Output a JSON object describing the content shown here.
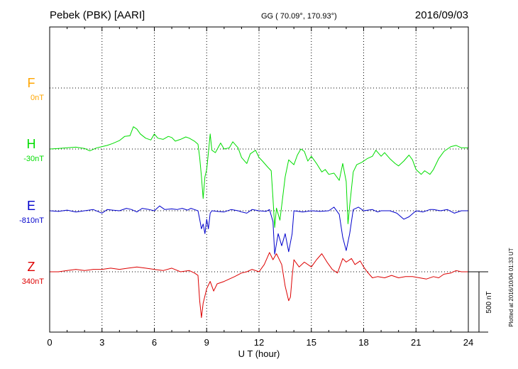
{
  "header": {
    "station": "Pebek (PBK)  [AARI]",
    "coords": "GG ( 70.09°, 170.93°)",
    "date": "2016/09/03"
  },
  "footer": {
    "plotted": "Plotted at 2016/10/04 01:33 UT",
    "scale_label": "500 nT"
  },
  "colors": {
    "F": "#ffa500",
    "H": "#00dd00",
    "E": "#0000cc",
    "Z": "#dd0000"
  },
  "chart_data": {
    "type": "line",
    "xlabel": "U T (hour)",
    "xlim": [
      0,
      24
    ],
    "xticks": [
      "0",
      "3",
      "6",
      "9",
      "12",
      "15",
      "18",
      "21",
      "24"
    ],
    "series": [
      {
        "name": "F",
        "baseline": "0nT",
        "values": []
      },
      {
        "name": "H",
        "baseline": "-30nT",
        "values": [
          [
            0,
            -30
          ],
          [
            0.5,
            -25
          ],
          [
            1,
            -20
          ],
          [
            1.5,
            -15
          ],
          [
            2,
            -25
          ],
          [
            2.3,
            -45
          ],
          [
            2.7,
            -20
          ],
          [
            3,
            -10
          ],
          [
            3.3,
            0
          ],
          [
            3.6,
            15
          ],
          [
            4,
            40
          ],
          [
            4.3,
            75
          ],
          [
            4.6,
            80
          ],
          [
            4.8,
            155
          ],
          [
            5,
            135
          ],
          [
            5.2,
            95
          ],
          [
            5.5,
            60
          ],
          [
            5.8,
            45
          ],
          [
            6,
            95
          ],
          [
            6.2,
            60
          ],
          [
            6.5,
            50
          ],
          [
            6.8,
            75
          ],
          [
            7,
            65
          ],
          [
            7.2,
            35
          ],
          [
            7.5,
            50
          ],
          [
            7.8,
            70
          ],
          [
            8,
            60
          ],
          [
            8.3,
            35
          ],
          [
            8.5,
            10
          ],
          [
            8.6,
            -100
          ],
          [
            8.7,
            -260
          ],
          [
            8.8,
            -440
          ],
          [
            8.9,
            -260
          ],
          [
            9,
            -200
          ],
          [
            9.1,
            -60
          ],
          [
            9.2,
            95
          ],
          [
            9.3,
            -40
          ],
          [
            9.5,
            -60
          ],
          [
            9.8,
            20
          ],
          [
            10,
            -30
          ],
          [
            10.3,
            -20
          ],
          [
            10.5,
            30
          ],
          [
            10.8,
            -20
          ],
          [
            11,
            -100
          ],
          [
            11.3,
            -150
          ],
          [
            11.5,
            -70
          ],
          [
            11.8,
            -40
          ],
          [
            12,
            -100
          ],
          [
            12.2,
            -130
          ],
          [
            12.5,
            -180
          ],
          [
            12.7,
            -210
          ],
          [
            12.8,
            -440
          ],
          [
            12.9,
            -680
          ],
          [
            13,
            -520
          ],
          [
            13.2,
            -620
          ],
          [
            13.5,
            -260
          ],
          [
            13.7,
            -120
          ],
          [
            14,
            -160
          ],
          [
            14.2,
            -80
          ],
          [
            14.4,
            -30
          ],
          [
            14.6,
            -50
          ],
          [
            14.8,
            -130
          ],
          [
            15,
            -90
          ],
          [
            15.3,
            -150
          ],
          [
            15.6,
            -220
          ],
          [
            15.8,
            -200
          ],
          [
            16,
            -240
          ],
          [
            16.3,
            -230
          ],
          [
            16.6,
            -290
          ],
          [
            16.8,
            -150
          ],
          [
            17,
            -300
          ],
          [
            17.1,
            -650
          ],
          [
            17.2,
            -500
          ],
          [
            17.4,
            -220
          ],
          [
            17.6,
            -160
          ],
          [
            17.9,
            -140
          ],
          [
            18.2,
            -110
          ],
          [
            18.5,
            -90
          ],
          [
            18.7,
            -40
          ],
          [
            19,
            -90
          ],
          [
            19.2,
            -60
          ],
          [
            19.5,
            -110
          ],
          [
            19.8,
            -150
          ],
          [
            20,
            -170
          ],
          [
            20.3,
            -130
          ],
          [
            20.6,
            -80
          ],
          [
            20.8,
            -120
          ],
          [
            21,
            -200
          ],
          [
            21.3,
            -240
          ],
          [
            21.5,
            -210
          ],
          [
            21.8,
            -240
          ],
          [
            22,
            -200
          ],
          [
            22.3,
            -110
          ],
          [
            22.6,
            -50
          ],
          [
            23,
            -10
          ],
          [
            23.3,
            0
          ],
          [
            23.6,
            -20
          ],
          [
            24,
            -20
          ]
        ]
      },
      {
        "name": "E",
        "baseline": "-810nT",
        "values": [
          [
            0,
            -810
          ],
          [
            0.5,
            -815
          ],
          [
            1,
            -805
          ],
          [
            1.5,
            -820
          ],
          [
            2,
            -810
          ],
          [
            2.5,
            -800
          ],
          [
            3,
            -830
          ],
          [
            3.3,
            -800
          ],
          [
            3.6,
            -805
          ],
          [
            4,
            -810
          ],
          [
            4.4,
            -790
          ],
          [
            4.7,
            -800
          ],
          [
            5,
            -820
          ],
          [
            5.3,
            -790
          ],
          [
            5.7,
            -800
          ],
          [
            6,
            -810
          ],
          [
            6.3,
            -770
          ],
          [
            6.6,
            -800
          ],
          [
            7,
            -795
          ],
          [
            7.3,
            -800
          ],
          [
            7.6,
            -790
          ],
          [
            7.9,
            -805
          ],
          [
            8.1,
            -790
          ],
          [
            8.3,
            -800
          ],
          [
            8.5,
            -810
          ],
          [
            8.6,
            -880
          ],
          [
            8.7,
            -960
          ],
          [
            8.8,
            -920
          ],
          [
            8.9,
            -1000
          ],
          [
            9,
            -880
          ],
          [
            9.1,
            -960
          ],
          [
            9.2,
            -830
          ],
          [
            9.3,
            -810
          ],
          [
            9.6,
            -815
          ],
          [
            10,
            -820
          ],
          [
            10.4,
            -800
          ],
          [
            10.8,
            -810
          ],
          [
            11,
            -820
          ],
          [
            11.3,
            -830
          ],
          [
            11.6,
            -800
          ],
          [
            12,
            -810
          ],
          [
            12.4,
            -815
          ],
          [
            12.6,
            -800
          ],
          [
            12.8,
            -900
          ],
          [
            12.9,
            -1170
          ],
          [
            13.1,
            -1000
          ],
          [
            13.3,
            -1100
          ],
          [
            13.5,
            -1000
          ],
          [
            13.7,
            -1150
          ],
          [
            13.9,
            -1000
          ],
          [
            14,
            -810
          ],
          [
            14.5,
            -820
          ],
          [
            15,
            -810
          ],
          [
            15.5,
            -815
          ],
          [
            16,
            -810
          ],
          [
            16.3,
            -780
          ],
          [
            16.6,
            -840
          ],
          [
            16.8,
            -1030
          ],
          [
            17,
            -1140
          ],
          [
            17.2,
            -1000
          ],
          [
            17.4,
            -800
          ],
          [
            17.7,
            -780
          ],
          [
            18,
            -810
          ],
          [
            18.5,
            -800
          ],
          [
            18.8,
            -820
          ],
          [
            19,
            -810
          ],
          [
            19.5,
            -810
          ],
          [
            19.9,
            -830
          ],
          [
            20.3,
            -880
          ],
          [
            20.6,
            -860
          ],
          [
            21,
            -810
          ],
          [
            21.4,
            -820
          ],
          [
            21.8,
            -800
          ],
          [
            22,
            -800
          ],
          [
            22.4,
            -810
          ],
          [
            22.8,
            -800
          ],
          [
            23.2,
            -830
          ],
          [
            23.6,
            -810
          ],
          [
            24,
            -810
          ]
        ]
      },
      {
        "name": "Z",
        "baseline": "340nT",
        "values": [
          [
            0,
            340
          ],
          [
            0.5,
            340
          ],
          [
            1,
            350
          ],
          [
            1.5,
            360
          ],
          [
            2,
            350
          ],
          [
            2.5,
            360
          ],
          [
            3,
            360
          ],
          [
            3.5,
            370
          ],
          [
            4,
            360
          ],
          [
            4.5,
            370
          ],
          [
            5,
            380
          ],
          [
            5.5,
            370
          ],
          [
            6,
            360
          ],
          [
            6.5,
            350
          ],
          [
            7,
            370
          ],
          [
            7.5,
            340
          ],
          [
            8,
            350
          ],
          [
            8.3,
            330
          ],
          [
            8.5,
            310
          ],
          [
            8.6,
            100
          ],
          [
            8.7,
            -40
          ],
          [
            8.8,
            80
          ],
          [
            9,
            200
          ],
          [
            9.2,
            260
          ],
          [
            9.4,
            180
          ],
          [
            9.6,
            240
          ],
          [
            10,
            260
          ],
          [
            10.3,
            280
          ],
          [
            10.6,
            300
          ],
          [
            11,
            330
          ],
          [
            11.3,
            340
          ],
          [
            11.6,
            360
          ],
          [
            12,
            340
          ],
          [
            12.3,
            400
          ],
          [
            12.6,
            500
          ],
          [
            12.8,
            440
          ],
          [
            13,
            490
          ],
          [
            13.3,
            400
          ],
          [
            13.5,
            220
          ],
          [
            13.7,
            100
          ],
          [
            13.8,
            130
          ],
          [
            13.9,
            300
          ],
          [
            14,
            440
          ],
          [
            14.3,
            380
          ],
          [
            14.6,
            420
          ],
          [
            15,
            380
          ],
          [
            15.3,
            440
          ],
          [
            15.6,
            490
          ],
          [
            15.9,
            420
          ],
          [
            16.2,
            360
          ],
          [
            16.5,
            330
          ],
          [
            16.8,
            450
          ],
          [
            17,
            420
          ],
          [
            17.3,
            450
          ],
          [
            17.5,
            400
          ],
          [
            17.8,
            430
          ],
          [
            18,
            380
          ],
          [
            18.2,
            340
          ],
          [
            18.5,
            290
          ],
          [
            18.8,
            300
          ],
          [
            19.2,
            290
          ],
          [
            19.6,
            310
          ],
          [
            20,
            290
          ],
          [
            20.4,
            300
          ],
          [
            20.8,
            300
          ],
          [
            21.2,
            290
          ],
          [
            21.6,
            280
          ],
          [
            22,
            300
          ],
          [
            22.3,
            290
          ],
          [
            22.6,
            320
          ],
          [
            23,
            330
          ],
          [
            23.3,
            350
          ],
          [
            23.6,
            340
          ],
          [
            24,
            340
          ]
        ]
      }
    ]
  }
}
